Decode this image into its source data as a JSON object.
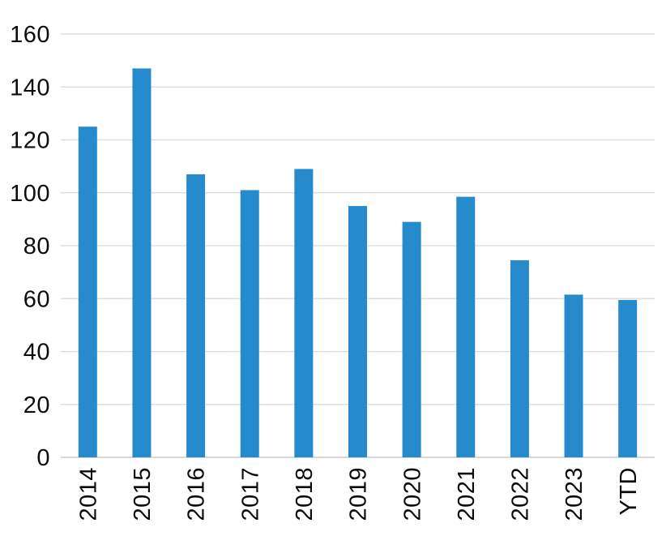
{
  "figure": {
    "background_color": "#ffffff"
  },
  "chart_data": {
    "type": "bar",
    "title": "",
    "xlabel": "",
    "ylabel": "",
    "categories": [
      "2014",
      "2015",
      "2016",
      "2017",
      "2018",
      "2019",
      "2020",
      "2021",
      "2022",
      "2023",
      "YTD"
    ],
    "values": [
      125,
      147,
      107,
      101,
      109,
      95,
      89,
      98.5,
      74.5,
      61.5,
      59.5
    ],
    "ylim": [
      0,
      160
    ],
    "ytick_step": 20,
    "ytick_labels": [
      "0",
      "20",
      "40",
      "60",
      "80",
      "100",
      "120",
      "140",
      "160"
    ],
    "grid": true,
    "legend": false,
    "x_label_rotation_deg": -90,
    "colors": {
      "bar": "#268BCD",
      "gridline": "#d9d9d9",
      "axis_line": "#c9c9c9",
      "tick_label": "#0b0b0b"
    }
  }
}
